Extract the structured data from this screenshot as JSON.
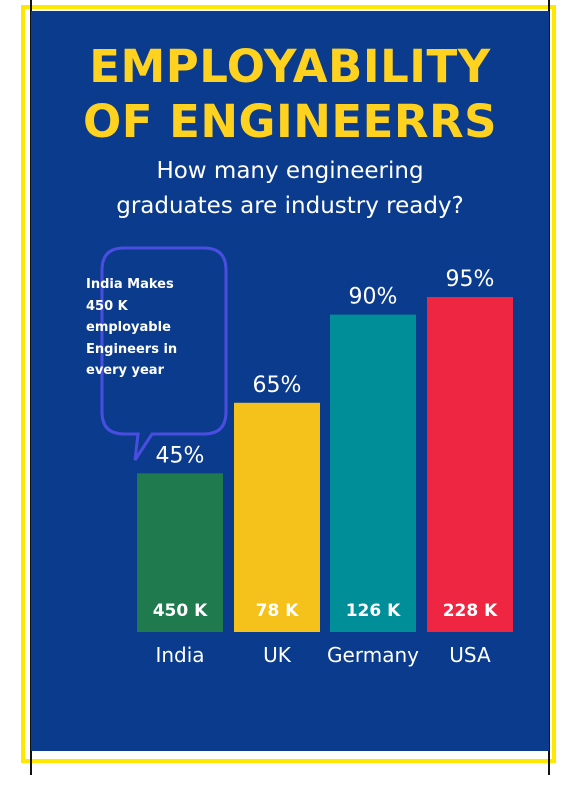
{
  "poster": {
    "title_line1": "EMPLOYABILITY",
    "title_line2": "OF ENGINEERRS",
    "subtitle_line1": "How many engineering",
    "subtitle_line2": "graduates are industry ready?",
    "callout_lines": [
      "India Makes",
      "450 K",
      "employable",
      "Engineers in",
      "every year"
    ]
  },
  "colors": {
    "background": "#0b3b8c",
    "title": "#ffd21f",
    "frame": "#ffe800",
    "callout_border": "#4a4ee0"
  },
  "chart_data": {
    "type": "bar",
    "categories": [
      "India",
      "UK",
      "Germany",
      "USA"
    ],
    "values": [
      45,
      65,
      90,
      95
    ],
    "value_labels": [
      "45%",
      "65%",
      "90%",
      "95%"
    ],
    "inner_labels": [
      "450 K",
      "78 K",
      "126 K",
      "228 K"
    ],
    "colors": [
      "#1f7a4d",
      "#f5c21b",
      "#008f99",
      "#ee2641"
    ],
    "ylim": [
      0,
      100
    ]
  }
}
